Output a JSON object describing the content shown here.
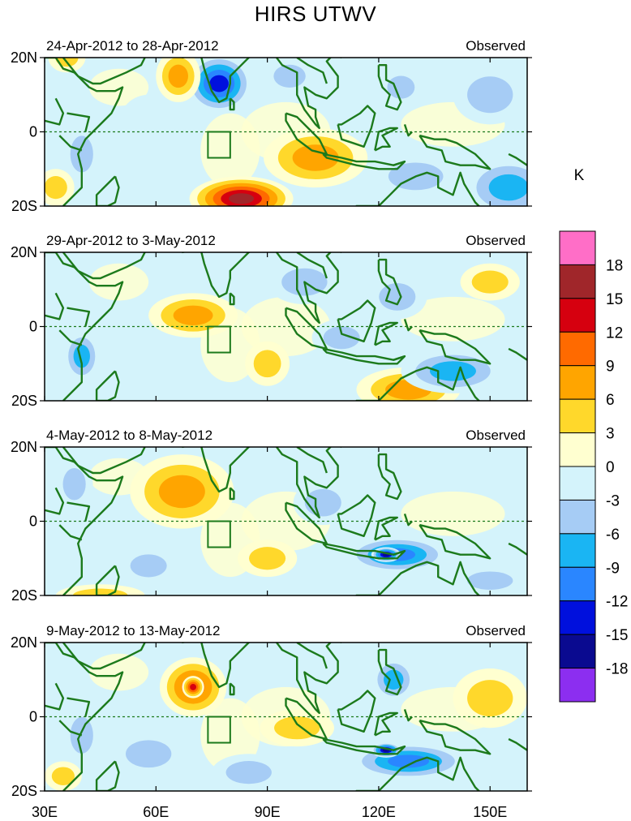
{
  "chart_data": {
    "type": "heatmap",
    "title": "HIRS UTWV",
    "units": "K",
    "colorbar": {
      "levels": [
        18,
        15,
        12,
        9,
        6,
        3,
        0,
        -3,
        -6,
        -9,
        -12,
        -15,
        -18
      ],
      "colors": [
        "#ff6ec7",
        "#a0262a",
        "#d6000f",
        "#ff6a00",
        "#ffa500",
        "#ffd82b",
        "#ffffd0",
        "#d4f3fb",
        "#a6ccf5",
        "#1ab5f3",
        "#2a86ff",
        "#0010dd",
        "#0a0a90",
        "#8c2ef0"
      ]
    },
    "xaxis": {
      "ticks": [
        30,
        60,
        90,
        120,
        150
      ],
      "tick_labels": [
        "30E",
        "60E",
        "90E",
        "120E",
        "150E"
      ],
      "range": [
        30,
        160
      ]
    },
    "yaxis": {
      "ticks": [
        20,
        0,
        -20
      ],
      "tick_labels": [
        "20N",
        "0",
        "20S"
      ],
      "range": [
        -20,
        20
      ]
    },
    "box_region": {
      "lon": [
        74,
        80
      ],
      "lat": [
        -7,
        0
      ]
    },
    "panels": [
      {
        "period": "24-Apr-2012 to 28-Apr-2012",
        "label": "Observed",
        "blobs": [
          {
            "lon": 77,
            "lat": 13,
            "rx": 9,
            "ry": 8,
            "v": -14
          },
          {
            "lon": 66,
            "lat": 15,
            "rx": 6,
            "ry": 7,
            "v": 7
          },
          {
            "lon": 36,
            "lat": 20,
            "rx": 5,
            "ry": 4,
            "v": 5
          },
          {
            "lon": 83,
            "lat": -18,
            "rx": 14,
            "ry": 6,
            "v": 17
          },
          {
            "lon": 103,
            "lat": -7,
            "rx": 14,
            "ry": 8,
            "v": 8
          },
          {
            "lon": 126,
            "lat": 12,
            "rx": 6,
            "ry": 5,
            "v": -5
          },
          {
            "lon": 96,
            "lat": 15,
            "rx": 7,
            "ry": 5,
            "v": -5
          },
          {
            "lon": 155,
            "lat": -15,
            "rx": 12,
            "ry": 8,
            "v": -8
          },
          {
            "lon": 130,
            "lat": -12,
            "rx": 12,
            "ry": 6,
            "v": -6
          },
          {
            "lon": 40,
            "lat": -6,
            "rx": 5,
            "ry": 8,
            "v": -6
          },
          {
            "lon": 150,
            "lat": 10,
            "rx": 10,
            "ry": 8,
            "v": -4
          },
          {
            "lon": 58,
            "lat": 2,
            "rx": 8,
            "ry": 8,
            "v": -3
          },
          {
            "lon": 33,
            "lat": -15,
            "rx": 5,
            "ry": 5,
            "v": 5
          }
        ]
      },
      {
        "period": "29-Apr-2012 to 3-May-2012",
        "label": "Observed",
        "blobs": [
          {
            "lon": 70,
            "lat": 3,
            "rx": 12,
            "ry": 6,
            "v": 8
          },
          {
            "lon": 90,
            "lat": -10,
            "rx": 6,
            "ry": 6,
            "v": 6
          },
          {
            "lon": 128,
            "lat": -17,
            "rx": 14,
            "ry": 6,
            "v": 9
          },
          {
            "lon": 40,
            "lat": -8,
            "rx": 5,
            "ry": 7,
            "v": -8
          },
          {
            "lon": 140,
            "lat": -12,
            "rx": 14,
            "ry": 6,
            "v": -8
          },
          {
            "lon": 100,
            "lat": 12,
            "rx": 10,
            "ry": 6,
            "v": -4
          },
          {
            "lon": 125,
            "lat": 8,
            "rx": 8,
            "ry": 6,
            "v": -5
          },
          {
            "lon": 60,
            "lat": -15,
            "rx": 10,
            "ry": 5,
            "v": -3
          },
          {
            "lon": 150,
            "lat": 12,
            "rx": 8,
            "ry": 5,
            "v": 5
          },
          {
            "lon": 110,
            "lat": -3,
            "rx": 8,
            "ry": 5,
            "v": -4
          }
        ]
      },
      {
        "period": "4-May-2012 to 8-May-2012",
        "label": "Observed",
        "blobs": [
          {
            "lon": 67,
            "lat": 8,
            "rx": 14,
            "ry": 10,
            "v": 9
          },
          {
            "lon": 125,
            "lat": -9,
            "rx": 14,
            "ry": 5,
            "v": -12
          },
          {
            "lon": 122,
            "lat": -9,
            "rx": 4,
            "ry": 2,
            "v": -16
          },
          {
            "lon": 38,
            "lat": 10,
            "rx": 5,
            "ry": 7,
            "v": -5
          },
          {
            "lon": 90,
            "lat": -10,
            "rx": 8,
            "ry": 5,
            "v": 5
          },
          {
            "lon": 105,
            "lat": 5,
            "rx": 8,
            "ry": 6,
            "v": -4
          },
          {
            "lon": 150,
            "lat": -16,
            "rx": 10,
            "ry": 4,
            "v": -5
          },
          {
            "lon": 45,
            "lat": -20,
            "rx": 12,
            "ry": 3,
            "v": 5
          },
          {
            "lon": 58,
            "lat": -12,
            "rx": 8,
            "ry": 5,
            "v": -4
          }
        ]
      },
      {
        "period": "9-May-2012 to 13-May-2012",
        "label": "Observed",
        "blobs": [
          {
            "lon": 70,
            "lat": 8,
            "rx": 9,
            "ry": 8,
            "v": 10
          },
          {
            "lon": 70,
            "lat": 8,
            "rx": 3,
            "ry": 3,
            "v": 14
          },
          {
            "lon": 128,
            "lat": -12,
            "rx": 16,
            "ry": 5,
            "v": -11
          },
          {
            "lon": 122,
            "lat": -9,
            "rx": 4,
            "ry": 2,
            "v": -16
          },
          {
            "lon": 124,
            "lat": 10,
            "rx": 6,
            "ry": 6,
            "v": -9
          },
          {
            "lon": 58,
            "lat": -10,
            "rx": 10,
            "ry": 6,
            "v": -5
          },
          {
            "lon": 85,
            "lat": -15,
            "rx": 10,
            "ry": 5,
            "v": -6
          },
          {
            "lon": 98,
            "lat": -3,
            "rx": 10,
            "ry": 5,
            "v": 6
          },
          {
            "lon": 150,
            "lat": 5,
            "rx": 10,
            "ry": 8,
            "v": 4
          },
          {
            "lon": 40,
            "lat": -5,
            "rx": 5,
            "ry": 8,
            "v": -4
          },
          {
            "lon": 35,
            "lat": -16,
            "rx": 5,
            "ry": 4,
            "v": 5
          }
        ]
      }
    ]
  }
}
